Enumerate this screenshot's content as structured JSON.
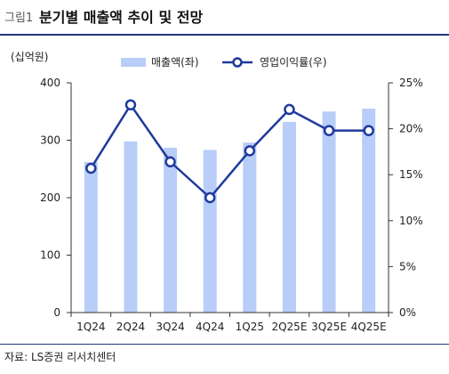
{
  "header": {
    "figure_no": "그림1",
    "title": "분기별 매출액 추이 및 전망"
  },
  "source": "자료: LS증권 리서치센터",
  "colors": {
    "bar": "#b8cdf8",
    "line": "#1f3a9c",
    "marker_fill": "#ffffff",
    "rule": "#1f3a7a",
    "axis": "#333333"
  },
  "chart_data": {
    "type": "bar",
    "categories": [
      "1Q24",
      "2Q24",
      "3Q24",
      "4Q24",
      "1Q25",
      "2Q25E",
      "3Q25E",
      "4Q25E"
    ],
    "series": [
      {
        "name": "매출액(좌)",
        "type": "bar",
        "axis": "left",
        "values": [
          262,
          298,
          287,
          283,
          296,
          332,
          350,
          355
        ]
      },
      {
        "name": "영업이익률(우)",
        "type": "line",
        "axis": "right",
        "values": [
          15.7,
          22.6,
          16.4,
          12.5,
          17.6,
          22.1,
          19.8,
          19.8
        ]
      }
    ],
    "ylabel_left": "(십억원)",
    "ylim_left": [
      0,
      400
    ],
    "yticks_left": [
      "0",
      "100",
      "200",
      "300",
      "400"
    ],
    "ylim_right": [
      0,
      25
    ],
    "yticks_right": [
      "0%",
      "5%",
      "10%",
      "15%",
      "20%",
      "25%"
    ],
    "legend_position": "top",
    "grid": false
  }
}
